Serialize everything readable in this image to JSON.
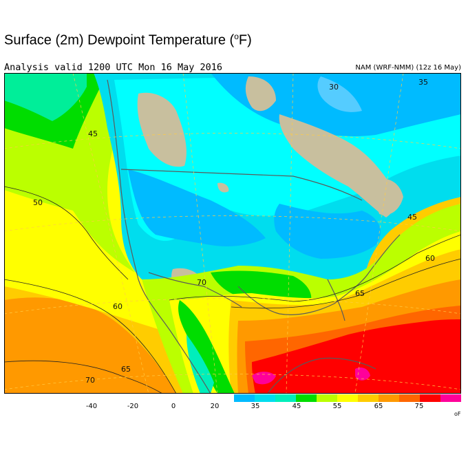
{
  "title": {
    "prefix": "Surface (2m) Dewpoint Temperature (",
    "sup": "o",
    "suffix": "F)"
  },
  "valid_text": "Analysis valid 1200 UTC Mon 16 May 2016",
  "model_text": "NAM (WRF-NMM) (12z 16 May)",
  "contour_labels": [
    "30",
    "35",
    "45",
    "50",
    "45",
    "60",
    "65",
    "70",
    "60",
    "65",
    "70"
  ],
  "colorbar": {
    "ticks": [
      "-40",
      "-20",
      "0",
      "20",
      "35",
      "45",
      "55",
      "65",
      "75"
    ],
    "unit": "oF",
    "colors": [
      "#00bbff",
      "#00ddee",
      "#00eebb",
      "#00dd00",
      "#bbff00",
      "#ffff00",
      "#ffcc00",
      "#ff9900",
      "#ff6600",
      "#ff0000",
      "#ff0099"
    ]
  },
  "colors": {
    "land_dry": "#c8bf9e",
    "ocean_cool": "#00ffff",
    "ocean_warm": "#ffff00",
    "ocean_hot": "#ff6600"
  }
}
